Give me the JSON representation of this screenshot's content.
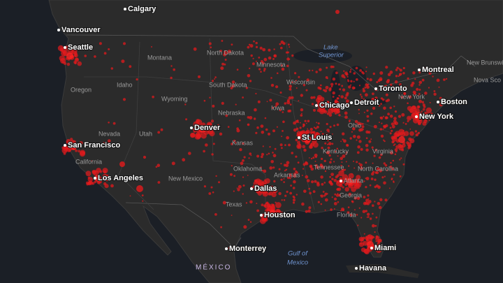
{
  "cities": [
    "Calgary",
    "Vancouver",
    "Seattle",
    "Montreal",
    "Toronto",
    "Chicago",
    "Detroit",
    "New York",
    "Boston",
    "San Francisco",
    "Los Angeles",
    "Denver",
    "St Louis",
    "Dallas",
    "Houston",
    "Monterrey",
    "Miami",
    "Havana",
    "Atlanta"
  ],
  "regions": [
    "Montana",
    "North Dakota",
    "Minnesota",
    "Oregon",
    "Idaho",
    "South Dakota",
    "Wisconsin",
    "Wyoming",
    "Iowa",
    "Nebraska",
    "Nevada",
    "Utah",
    "California",
    "Kansas",
    "Ohio",
    "Kentucky",
    "Virginia",
    "Oklahoma",
    "Arkansas",
    "Tennessee",
    "North Carolina",
    "New Mexico",
    "Texas",
    "Georgia",
    "Florida",
    "New York",
    "New Brunswick",
    "Nova Sco"
  ],
  "water": [
    "Lake",
    "Superior",
    "Gulf of",
    "Mexico"
  ],
  "country": "MÉXICO"
}
